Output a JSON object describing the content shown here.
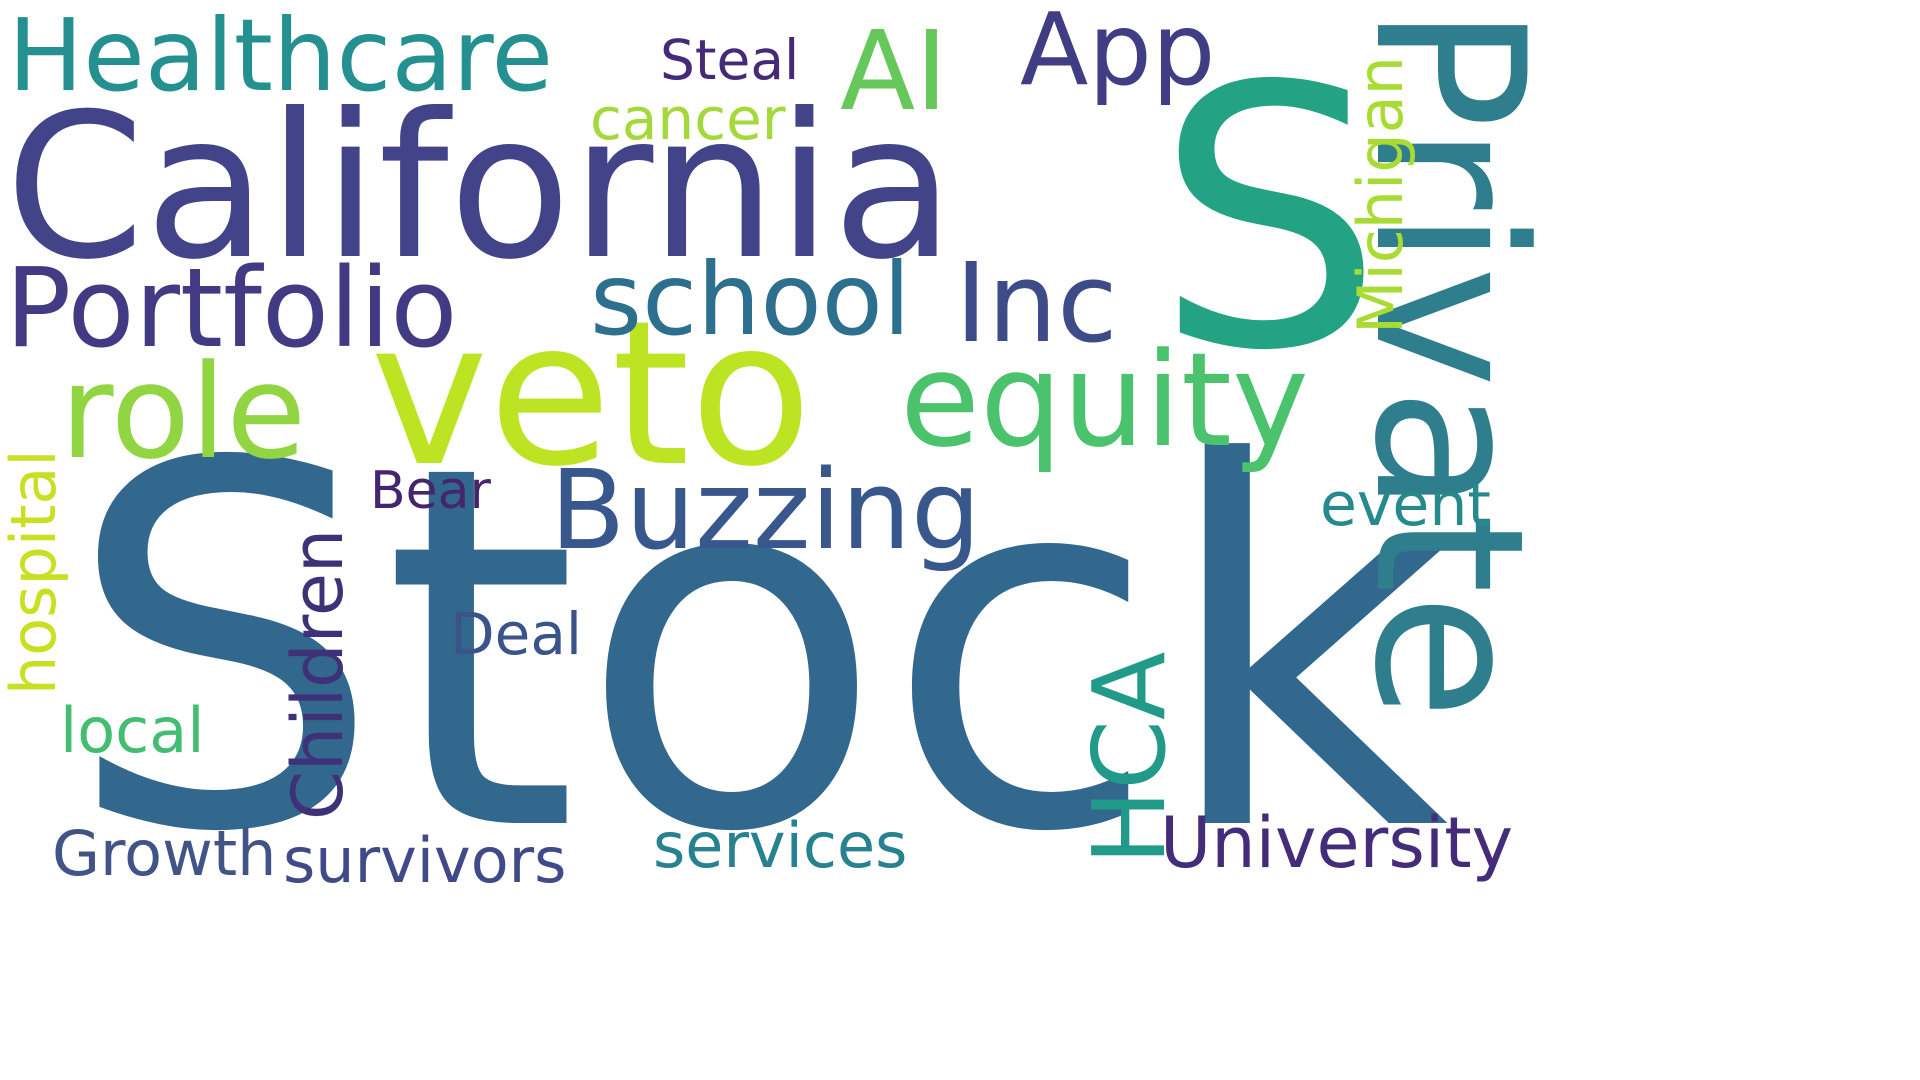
{
  "words": [
    {
      "text": "Stock",
      "color": "#32688e"
    },
    {
      "text": "S",
      "color": "#23a383"
    },
    {
      "text": "California",
      "color": "#424389"
    },
    {
      "text": "Private",
      "color": "#2e7e8e"
    },
    {
      "text": "veto",
      "color": "#bde423"
    },
    {
      "text": "Portfolio",
      "color": "#423a82"
    },
    {
      "text": "Healthcare",
      "color": "#259090"
    },
    {
      "text": "equity",
      "color": "#4bc26c"
    },
    {
      "text": "role",
      "color": "#91d542"
    },
    {
      "text": "school",
      "color": "#2d6f8e"
    },
    {
      "text": "Inc",
      "color": "#3d4b89"
    },
    {
      "text": "Buzzing",
      "color": "#38578c"
    },
    {
      "text": "AI",
      "color": "#66c85b"
    },
    {
      "text": "App",
      "color": "#413d84"
    },
    {
      "text": "HCA",
      "color": "#229a8a"
    },
    {
      "text": "Children",
      "color": "#3e3178"
    },
    {
      "text": "University",
      "color": "#442c7a"
    },
    {
      "text": "hospital",
      "color": "#c8e021"
    },
    {
      "text": "Michigan",
      "color": "#a8db34"
    },
    {
      "text": "survivors",
      "color": "#404a88"
    },
    {
      "text": "Growth",
      "color": "#415487"
    },
    {
      "text": "services",
      "color": "#27818f"
    },
    {
      "text": "local",
      "color": "#42bd72"
    },
    {
      "text": "Deal",
      "color": "#3a5489"
    },
    {
      "text": "event",
      "color": "#268a8c"
    },
    {
      "text": "cancer",
      "color": "#a3d93b"
    },
    {
      "text": "Steal",
      "color": "#452a78"
    },
    {
      "text": "Bear",
      "color": "#46256f"
    }
  ]
}
